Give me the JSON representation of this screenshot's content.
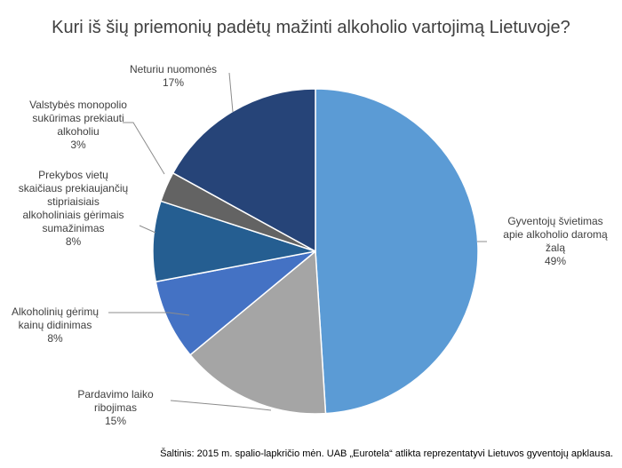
{
  "chart_data": {
    "type": "pie",
    "title": "Kuri iš šių priemonių padėtų mažinti alkoholio vartojimą Lietuvoje?",
    "slices": [
      {
        "label": "Gyventojų švietimas\napie alkoholio daromą\nžalą",
        "value": 49,
        "value_label": "49%",
        "color": "#5b9bd5"
      },
      {
        "label": "Pardavimo laiko\nribojimas",
        "value": 15,
        "value_label": "15%",
        "color": "#a5a5a5"
      },
      {
        "label": "Alkoholinių gėrimų\nkainų didinimas",
        "value": 8,
        "value_label": "8%",
        "color": "#4472c4"
      },
      {
        "label": "Prekybos vietų\nskaičiaus prekiaujančių\nstipriaisiais\nalkoholiniais gėrimais\nsumažinimas",
        "value": 8,
        "value_label": "8%",
        "color": "#255e91"
      },
      {
        "label": "Valstybės monopolio\nsukūrimas  prekiauti\nalkoholiu",
        "value": 3,
        "value_label": "3%",
        "color": "#636363"
      },
      {
        "label": "Neturiu nuomonės",
        "value": 17,
        "value_label": "17%",
        "color": "#264478"
      }
    ],
    "legend": "none"
  },
  "source": "Šaltinis: 2015 m. spalio-lapkričio mėn. UAB „Eurotela“ atlikta reprezentatyvi Lietuvos gyventojų apklausa."
}
